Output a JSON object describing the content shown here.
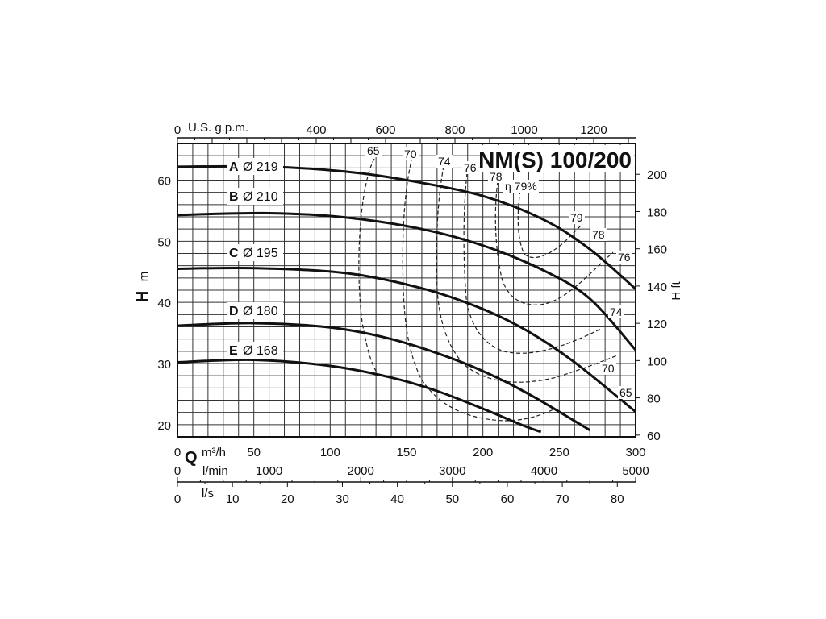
{
  "chart_data": {
    "type": "line",
    "title": "NM(S) 100/200",
    "x_primary": {
      "symbol": "Q",
      "unit": "m³/h",
      "range": [
        0,
        300
      ],
      "ticks": [
        0,
        50,
        100,
        150,
        200,
        250,
        300
      ]
    },
    "x_secondary": [
      {
        "unit": "U.S. g.p.m.",
        "position": "top",
        "ticks": [
          0,
          400,
          600,
          800,
          1000,
          1200
        ]
      },
      {
        "unit": "l/min",
        "position": "bottom",
        "ticks": [
          0,
          1000,
          2000,
          3000,
          4000,
          5000
        ]
      },
      {
        "unit": "l/s",
        "position": "bottom",
        "ticks": [
          0,
          10,
          20,
          30,
          40,
          50,
          60,
          70,
          80
        ]
      }
    ],
    "y_left": {
      "symbol": "H",
      "unit": "m",
      "range": [
        18,
        66
      ],
      "ticks": [
        20,
        30,
        40,
        50,
        60
      ]
    },
    "y_right": {
      "label": "H ft",
      "ticks": [
        60,
        80,
        100,
        120,
        140,
        160,
        180,
        200
      ]
    },
    "grid": true,
    "series": [
      {
        "letter": "A",
        "diameter": "Ø 219",
        "points": [
          [
            0,
            62.2
          ],
          [
            60,
            62.2
          ],
          [
            110,
            61.4
          ],
          [
            150,
            60.0
          ],
          [
            200,
            57.4
          ],
          [
            240,
            53.5
          ],
          [
            270,
            48.7
          ],
          [
            300,
            42.2
          ]
        ]
      },
      {
        "letter": "B",
        "diameter": "Ø 210",
        "points": [
          [
            0,
            54.3
          ],
          [
            60,
            54.6
          ],
          [
            110,
            53.9
          ],
          [
            160,
            52.0
          ],
          [
            200,
            49.3
          ],
          [
            240,
            45.2
          ],
          [
            270,
            40.6
          ],
          [
            300,
            32.2
          ]
        ]
      },
      {
        "letter": "C",
        "diameter": "Ø 195",
        "points": [
          [
            0,
            45.5
          ],
          [
            50,
            45.6
          ],
          [
            110,
            44.8
          ],
          [
            160,
            42.3
          ],
          [
            200,
            38.9
          ],
          [
            230,
            35.2
          ],
          [
            260,
            30.2
          ],
          [
            300,
            22.1
          ]
        ]
      },
      {
        "letter": "D",
        "diameter": "Ø 180",
        "points": [
          [
            0,
            36.2
          ],
          [
            50,
            36.6
          ],
          [
            100,
            35.9
          ],
          [
            140,
            34.0
          ],
          [
            180,
            30.8
          ],
          [
            210,
            27.6
          ],
          [
            235,
            24.3
          ],
          [
            270,
            19.1
          ]
        ]
      },
      {
        "letter": "E",
        "diameter": "Ø 168",
        "points": [
          [
            0,
            30.2
          ],
          [
            50,
            30.6
          ],
          [
            100,
            29.6
          ],
          [
            140,
            27.7
          ],
          [
            170,
            25.5
          ],
          [
            200,
            22.6
          ],
          [
            225,
            20.0
          ],
          [
            238,
            18.8
          ]
        ]
      }
    ],
    "efficiency_labels": {
      "top": [
        "65",
        "70",
        "74",
        "76",
        "78",
        "η 79%"
      ],
      "right": [
        "79",
        "78",
        "76",
        "74",
        "70",
        "65"
      ]
    }
  }
}
